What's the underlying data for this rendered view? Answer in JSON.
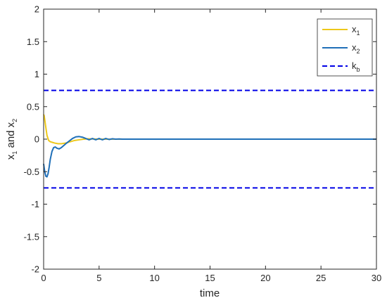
{
  "chart_data": {
    "type": "line",
    "title": "",
    "xlabel": "time",
    "ylabel": {
      "base": "x",
      "sub1": "1",
      "mid": " and x",
      "sub2": "2"
    },
    "xlim": [
      0,
      30
    ],
    "ylim": [
      -2,
      2
    ],
    "xticks": [
      0,
      5,
      10,
      15,
      20,
      25,
      30
    ],
    "yticks": [
      -2,
      -1.5,
      -1,
      -0.5,
      0,
      0.5,
      1,
      1.5,
      2
    ],
    "ytick_labels": [
      "-2",
      "-1.5",
      "-1",
      "-0.5",
      "0",
      "0.5",
      "1",
      "1.5",
      "2"
    ],
    "grid": false,
    "legend_position": "top-right",
    "series": [
      {
        "name": "x_1",
        "legend": {
          "base": "x",
          "sub": "1"
        },
        "color": "#EDC81A",
        "style": "solid",
        "x": [
          0,
          0.05,
          0.1,
          0.2,
          0.3,
          0.45,
          0.6,
          0.8,
          1.0,
          1.3,
          1.6,
          2.0,
          2.4,
          2.8,
          3.2,
          3.6,
          4.0,
          4.4,
          5.0,
          6.0,
          8.0,
          10,
          15,
          20,
          25,
          30
        ],
        "y": [
          0.38,
          0.36,
          0.3,
          0.18,
          0.06,
          -0.02,
          -0.04,
          -0.05,
          -0.06,
          -0.07,
          -0.07,
          -0.06,
          -0.04,
          -0.02,
          -0.01,
          0.0,
          0.005,
          0.003,
          0.0,
          0.0,
          0.0,
          0.0,
          0.0,
          0.0,
          0.0,
          0.0
        ]
      },
      {
        "name": "x_2",
        "legend": {
          "base": "x",
          "sub": "2"
        },
        "color": "#1F6FB8",
        "style": "solid",
        "x": [
          0,
          0.1,
          0.2,
          0.3,
          0.4,
          0.5,
          0.6,
          0.75,
          0.9,
          1.05,
          1.2,
          1.4,
          1.6,
          1.8,
          2.0,
          2.3,
          2.6,
          2.9,
          3.2,
          3.5,
          3.8,
          4.1,
          4.4,
          4.7,
          5.0,
          5.3,
          5.6,
          5.9,
          6.2,
          6.5,
          6.8,
          7.1,
          7.5,
          8.0,
          10,
          15,
          20,
          25,
          30
        ],
        "y": [
          -0.38,
          -0.5,
          -0.57,
          -0.58,
          -0.53,
          -0.43,
          -0.31,
          -0.19,
          -0.13,
          -0.12,
          -0.14,
          -0.15,
          -0.13,
          -0.1,
          -0.07,
          -0.03,
          0.01,
          0.035,
          0.04,
          0.03,
          0.01,
          -0.01,
          0.01,
          -0.01,
          0.01,
          -0.01,
          0.01,
          -0.005,
          0.005,
          0.0,
          0.003,
          0.0,
          0.0,
          0.0,
          0.0,
          0.0,
          0.0,
          0.0,
          0.0
        ]
      },
      {
        "name": "k_b upper",
        "legend": {
          "base": "k",
          "sub": "b"
        },
        "color": "#0000E6",
        "style": "dashed",
        "x": [
          0,
          30
        ],
        "y": [
          0.75,
          0.75
        ]
      },
      {
        "name": "k_b lower",
        "legend": null,
        "color": "#0000E6",
        "style": "dashed",
        "x": [
          0,
          30
        ],
        "y": [
          -0.75,
          -0.75
        ]
      }
    ]
  }
}
